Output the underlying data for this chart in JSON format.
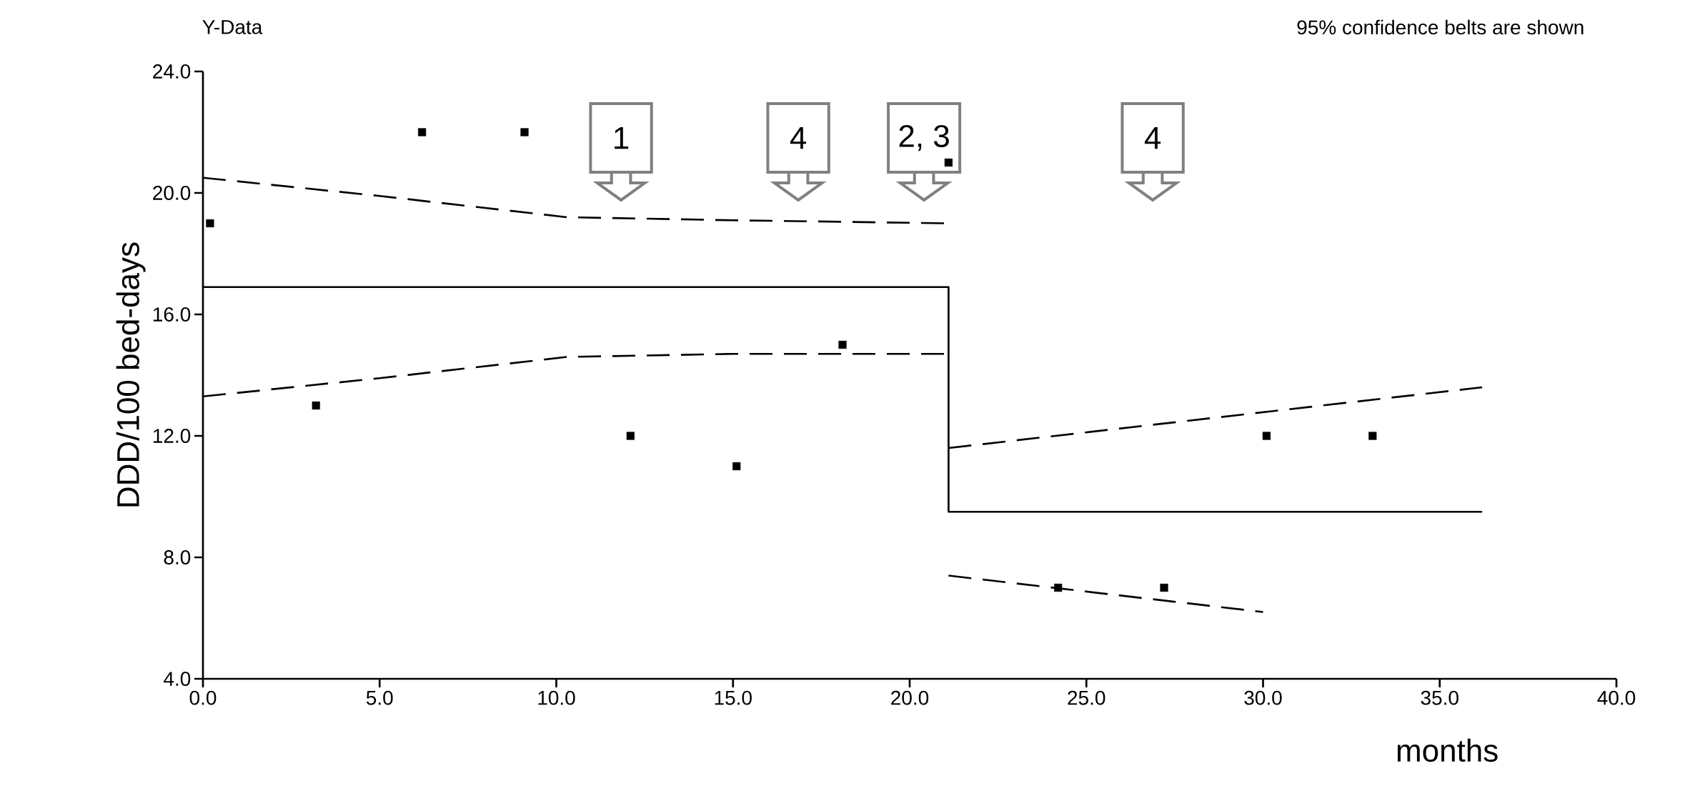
{
  "chart_data": {
    "type": "scatter",
    "subtitle": "95% confidence belts are shown",
    "ylabel": "DDD/100 bed-days",
    "xlabel": "months",
    "xlim": [
      0,
      40
    ],
    "ylim": [
      4,
      24
    ],
    "xticks": [
      {
        "value": 0,
        "label": "0.0"
      },
      {
        "value": 5,
        "label": "5.0"
      },
      {
        "value": 10,
        "label": "10.0"
      },
      {
        "value": 15,
        "label": "15.0"
      },
      {
        "value": 20,
        "label": "20.0"
      },
      {
        "value": 25,
        "label": "25.0"
      },
      {
        "value": 30,
        "label": "30.0"
      },
      {
        "value": 35,
        "label": "35.0"
      },
      {
        "value": 40,
        "label": "40.0"
      }
    ],
    "yticks": [
      {
        "value": 4,
        "label": "4.0"
      },
      {
        "value": 8,
        "label": "8.0"
      },
      {
        "value": 12,
        "label": "12.0"
      },
      {
        "value": 16,
        "label": "16.0"
      },
      {
        "value": 20,
        "label": "20.0"
      },
      {
        "value": 24,
        "label": "24.0"
      }
    ],
    "series": [
      {
        "marker": "square",
        "color": "#000000",
        "x": [
          0.2,
          3.2,
          6.2,
          9.1,
          12.1,
          15.1,
          18.1,
          21.1,
          24.2,
          27.2,
          30.1,
          33.1
        ],
        "values": [
          19,
          13,
          22,
          22,
          12,
          11,
          15,
          21,
          7,
          7,
          12,
          12
        ]
      },
      {
        "type": "line",
        "line_style": "solid",
        "color": "#000000",
        "x": [
          0,
          21.1,
          21.1,
          36.2
        ],
        "values": [
          16.9,
          16.9,
          9.5,
          9.5
        ]
      },
      {
        "type": "line",
        "line_style": "dashed",
        "color": "#000000",
        "x": [
          0,
          5,
          10.3,
          15,
          21
        ],
        "values": [
          20.5,
          19.9,
          19.2,
          19.1,
          19.0
        ]
      },
      {
        "type": "line",
        "line_style": "dashed",
        "color": "#000000",
        "x": [
          0,
          5,
          10.3,
          15,
          21
        ],
        "values": [
          13.3,
          13.9,
          14.6,
          14.7,
          14.7
        ]
      },
      {
        "type": "line",
        "line_style": "dashed",
        "color": "#000000",
        "x": [
          21.1,
          36.2
        ],
        "values": [
          11.6,
          13.6
        ]
      },
      {
        "type": "line",
        "line_style": "dashed",
        "color": "#000000",
        "x": [
          21.1,
          30
        ],
        "values": [
          7.4,
          6.2
        ]
      }
    ],
    "annotations": [
      "Y-Data",
      "1",
      "4",
      "2, 3",
      "4"
    ]
  }
}
